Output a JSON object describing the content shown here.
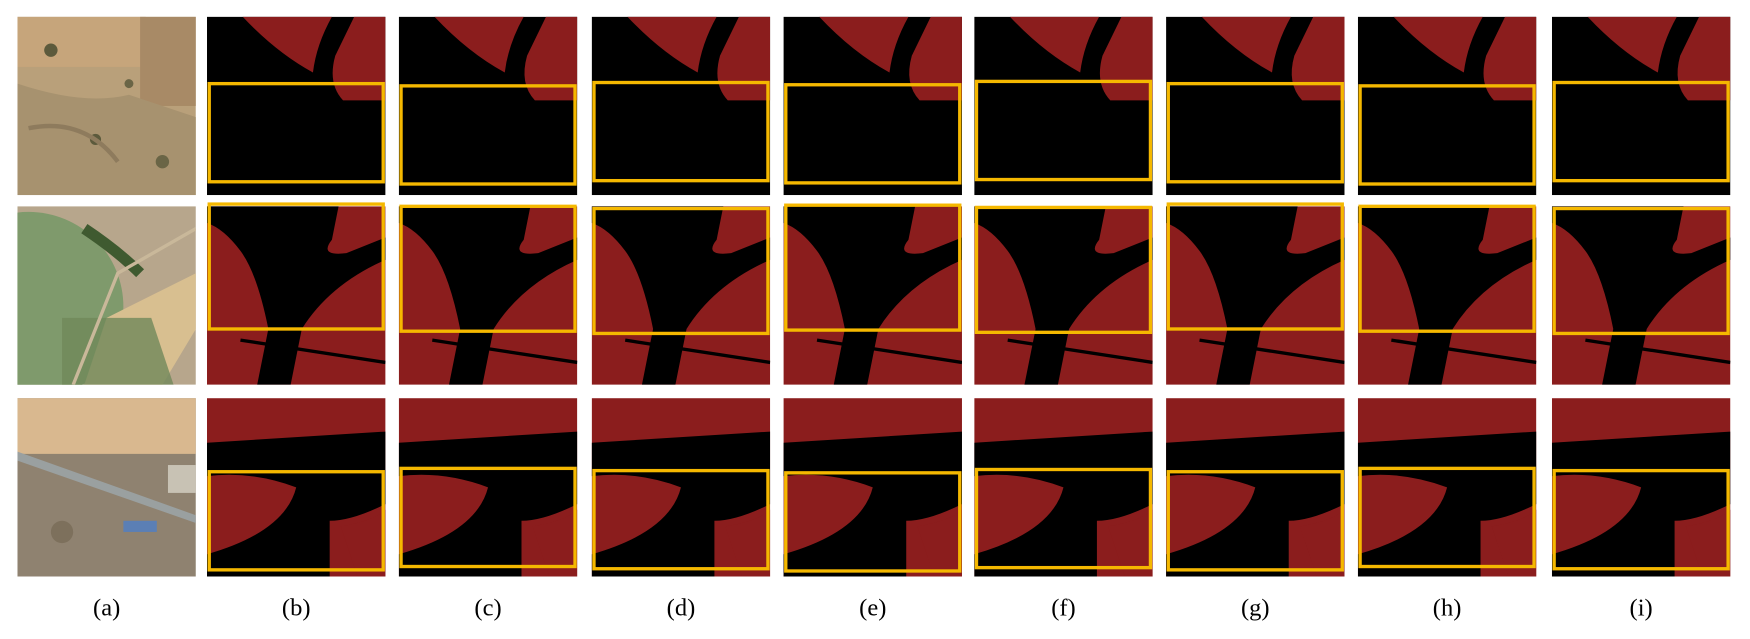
{
  "labels": [
    "(a)",
    "(b)",
    "(c)",
    "(d)",
    "(e)",
    "(f)",
    "(g)",
    "(h)",
    "(i)"
  ]
}
